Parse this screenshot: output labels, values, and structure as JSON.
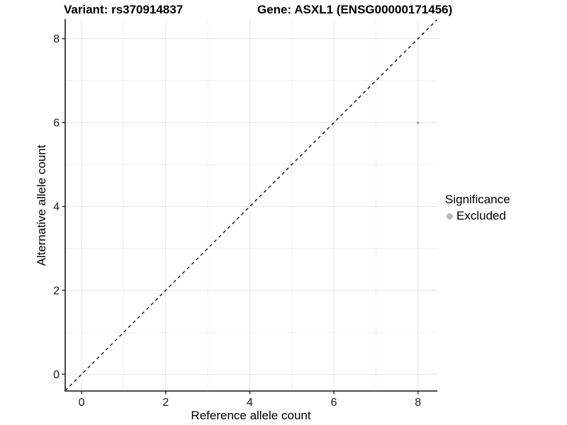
{
  "chart_data": {
    "type": "scatter",
    "title_left": "Variant: rs370914837",
    "title_right": "Gene: ASXL1 (ENSG00000171456)",
    "xlabel": "Reference allele count",
    "ylabel": "Alternative allele count",
    "xlim": [
      -0.39,
      8.46
    ],
    "ylim": [
      -0.4,
      8.45
    ],
    "x_major_ticks": [
      0,
      2,
      4,
      6,
      8
    ],
    "y_major_ticks": [
      0,
      2,
      4,
      6,
      8
    ],
    "x_minor_ticks": [
      1,
      3,
      5,
      7
    ],
    "y_minor_ticks": [
      1,
      3,
      5,
      7
    ],
    "grid": true,
    "points": [
      {
        "x": 8,
        "y": 6,
        "series": "Excluded"
      }
    ],
    "reference_line": {
      "type": "identity",
      "style": "dashed",
      "color": "#000000"
    },
    "legend": {
      "position": "right",
      "title": "Significance",
      "items": [
        {
          "label": "Excluded",
          "marker": "circle",
          "color": "#b9b9b9"
        }
      ]
    },
    "colors": {
      "point_excluded": "#b9b9b9",
      "grid_major": "#e4e4e4",
      "grid_minor": "#efefef",
      "axis": "#333333",
      "tick_text": "#1a1a1a"
    }
  }
}
